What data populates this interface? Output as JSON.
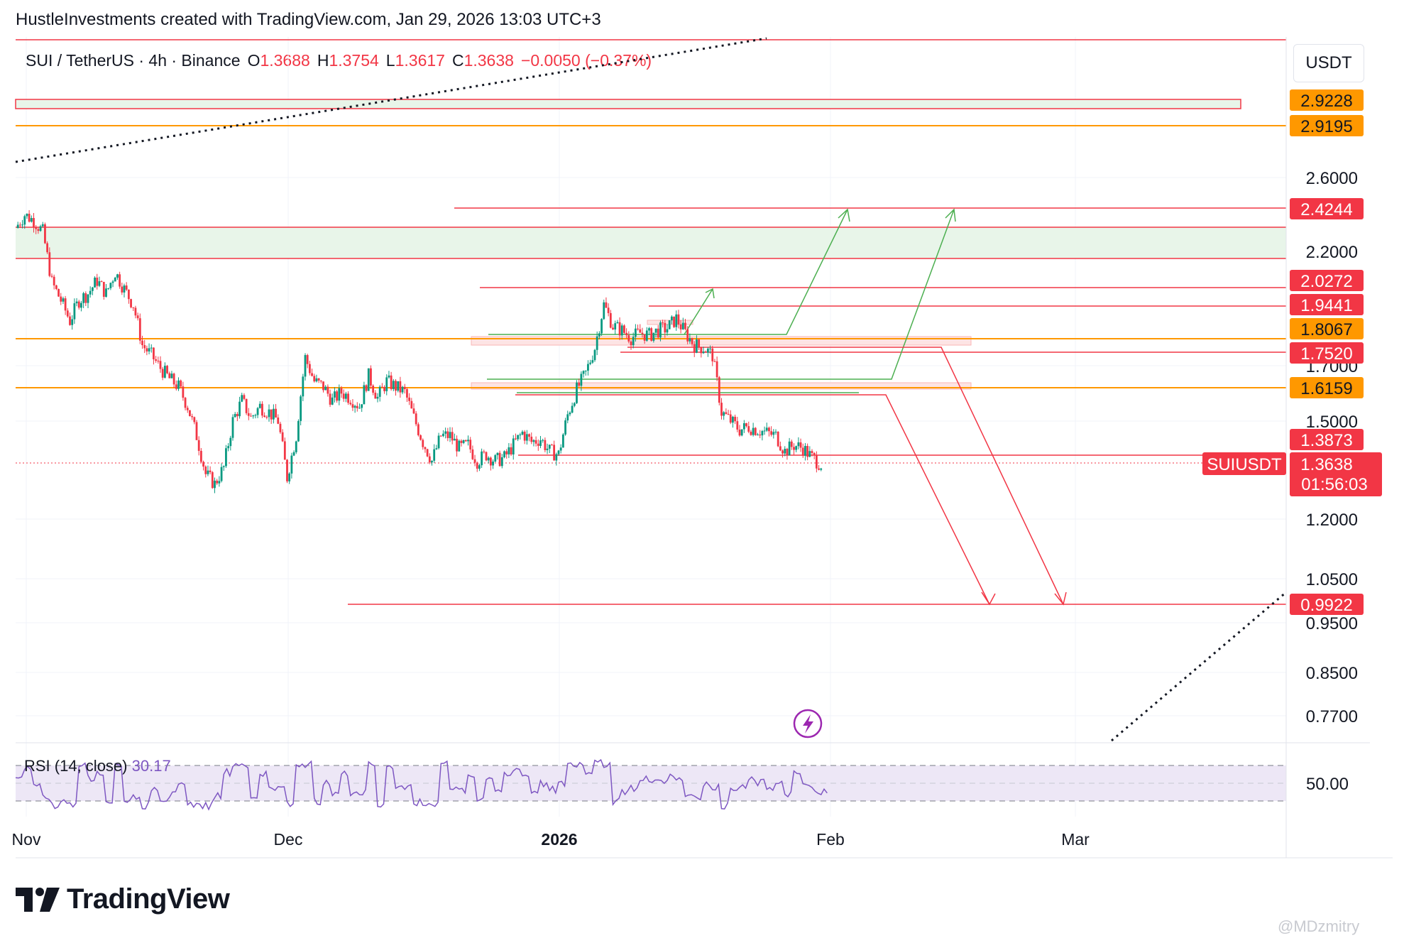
{
  "header": {
    "attribution": "HustleInvestments created with TradingView.com, Jan 29, 2026 13:03 UTC+3"
  },
  "symbol": {
    "name": "SUI / TetherUS · 4h · Binance",
    "o_label": "O",
    "o": "1.3688",
    "h_label": "H",
    "h": "1.3754",
    "l_label": "L",
    "l": "1.3617",
    "c_label": "C",
    "c": "1.3638",
    "change": "−0.0050 (−0.37%)"
  },
  "currency_button": "USDT",
  "rsi": {
    "label": "RSI (14, close)",
    "value": "30.17"
  },
  "logo_text": "TradingView",
  "watermark": "@MDzmitry",
  "colors": {
    "up": "#089981",
    "down": "#f23645",
    "orange": "#ff9800",
    "purple": "#7e57c2",
    "green_line": "#4caf50"
  },
  "chart_data": {
    "type": "candlestick",
    "scale": "log",
    "x_labels": [
      {
        "label": "Nov",
        "day": 0,
        "bold": false
      },
      {
        "label": "Dec",
        "day": 30,
        "bold": false
      },
      {
        "label": "2026",
        "day": 61,
        "bold": true
      },
      {
        "label": "Feb",
        "day": 92,
        "bold": false
      },
      {
        "label": "Mar",
        "day": 120,
        "bold": false
      }
    ],
    "y_ticks": [
      "2.6000",
      "2.2000",
      "1.7000",
      "1.5000",
      "1.2000",
      "1.0500",
      "0.9500",
      "0.8500",
      "0.7700"
    ],
    "rsi_tick": "50.00",
    "price_badges": [
      {
        "value": "2.9228",
        "color": "#ff9800"
      },
      {
        "value": "2.9195",
        "color": "#ff9800"
      },
      {
        "value": "2.4244",
        "color": "#f23645"
      },
      {
        "value": "2.0272",
        "color": "#f23645"
      },
      {
        "value": "1.9441",
        "color": "#f23645"
      },
      {
        "value": "1.8067",
        "color": "#ff9800"
      },
      {
        "value": "1.7520",
        "color": "#f23645"
      },
      {
        "value": "1.6159",
        "color": "#ff9800"
      },
      {
        "value": "1.3873",
        "color": "#f23645"
      },
      {
        "value": "0.9922",
        "color": "#f23645"
      }
    ],
    "current_price": {
      "symbol": "SUIUSDT",
      "value": "1.3638",
      "countdown": "01:56:03"
    },
    "price_path": [
      [
        0,
        2.32
      ],
      [
        1,
        2.39
      ],
      [
        2,
        2.36
      ],
      [
        3,
        2.3
      ],
      [
        4,
        2.05
      ],
      [
        5,
        1.97
      ],
      [
        6,
        1.88
      ],
      [
        7,
        1.97
      ],
      [
        8,
        2.0
      ],
      [
        9,
        2.06
      ],
      [
        10,
        2.0
      ],
      [
        11,
        2.1
      ],
      [
        12,
        2.02
      ],
      [
        13,
        1.95
      ],
      [
        14,
        1.78
      ],
      [
        15,
        1.74
      ],
      [
        16,
        1.69
      ],
      [
        17,
        1.65
      ],
      [
        18,
        1.62
      ],
      [
        19,
        1.55
      ],
      [
        20,
        1.45
      ],
      [
        21,
        1.33
      ],
      [
        22,
        1.3
      ],
      [
        23,
        1.35
      ],
      [
        24,
        1.5
      ],
      [
        25,
        1.57
      ],
      [
        26,
        1.51
      ],
      [
        27,
        1.55
      ],
      [
        28,
        1.53
      ],
      [
        29,
        1.5
      ],
      [
        30,
        1.32
      ],
      [
        31,
        1.45
      ],
      [
        32,
        1.73
      ],
      [
        33,
        1.64
      ],
      [
        34,
        1.62
      ],
      [
        35,
        1.57
      ],
      [
        36,
        1.6
      ],
      [
        37,
        1.58
      ],
      [
        38,
        1.55
      ],
      [
        39,
        1.66
      ],
      [
        40,
        1.58
      ],
      [
        41,
        1.64
      ],
      [
        42,
        1.62
      ],
      [
        43,
        1.6
      ],
      [
        44,
        1.51
      ],
      [
        45,
        1.43
      ],
      [
        46,
        1.37
      ],
      [
        47,
        1.45
      ],
      [
        48,
        1.45
      ],
      [
        49,
        1.41
      ],
      [
        50,
        1.42
      ],
      [
        51,
        1.37
      ],
      [
        52,
        1.39
      ],
      [
        53,
        1.37
      ],
      [
        54,
        1.38
      ],
      [
        55,
        1.42
      ],
      [
        56,
        1.46
      ],
      [
        57,
        1.43
      ],
      [
        58,
        1.44
      ],
      [
        59,
        1.4
      ],
      [
        60,
        1.39
      ],
      [
        61,
        1.52
      ],
      [
        62,
        1.61
      ],
      [
        63,
        1.67
      ],
      [
        64,
        1.77
      ],
      [
        65,
        1.95
      ],
      [
        66,
        1.86
      ],
      [
        67,
        1.84
      ],
      [
        68,
        1.81
      ],
      [
        69,
        1.83
      ],
      [
        70,
        1.82
      ],
      [
        71,
        1.84
      ],
      [
        72,
        1.85
      ],
      [
        73,
        1.89
      ],
      [
        74,
        1.83
      ],
      [
        75,
        1.78
      ],
      [
        76,
        1.77
      ],
      [
        77,
        1.74
      ],
      [
        78,
        1.53
      ],
      [
        79,
        1.5
      ],
      [
        80,
        1.47
      ],
      [
        81,
        1.48
      ],
      [
        82,
        1.47
      ],
      [
        83,
        1.46
      ],
      [
        84,
        1.45
      ],
      [
        85,
        1.4
      ],
      [
        86,
        1.42
      ],
      [
        87,
        1.41
      ],
      [
        88,
        1.38
      ],
      [
        89,
        1.36
      ]
    ],
    "rsi_range": [
      30,
      70
    ]
  }
}
